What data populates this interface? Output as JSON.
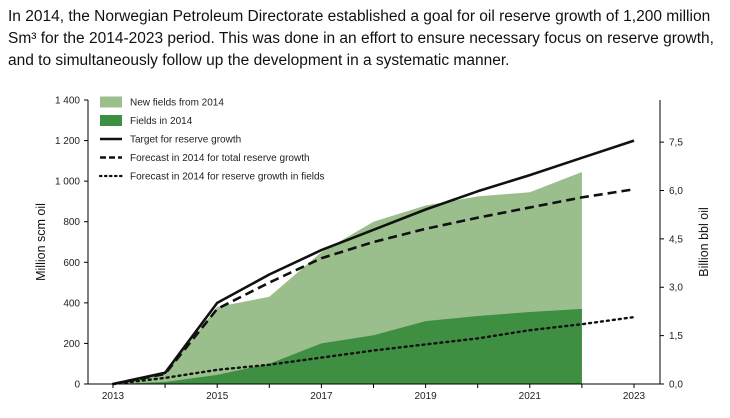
{
  "intro_text": "In 2014, the Norwegian Petroleum Directorate established a goal for oil reserve growth of 1,200 million Sm³ for the 2014-2023 period. This was done in an effort to ensure necessary focus on reserve growth, and to simultaneously follow up the development in a systematic manner.",
  "colors": {
    "new_fields": "#9bbf8c",
    "fields_2014": "#3f8f42",
    "lines": "#111111",
    "axis": "#000000"
  },
  "chart_data": {
    "type": "area",
    "xlabel": "",
    "ylabel": "Million scm oil",
    "ylabel_right": "Billion bbl oil",
    "xlim": [
      2013,
      2023
    ],
    "ylim": [
      0,
      1400
    ],
    "x_ticks": [
      "2013",
      "2015",
      "2017",
      "2019",
      "2021",
      "2023"
    ],
    "y_ticks": [
      "0",
      "200",
      "400",
      "600",
      "800",
      "1 000",
      "1 200",
      "1 400"
    ],
    "y_right_ticks": [
      "0,0",
      "1,5",
      "3,0",
      "4,5",
      "6,0",
      "7,5"
    ],
    "legend_position": "top-left",
    "series": [
      {
        "name": "New fields from 2014",
        "kind": "stacked-area",
        "x": [
          2013,
          2014,
          2015,
          2016,
          2017,
          2018,
          2019,
          2020,
          2021,
          2022
        ],
        "values": [
          0,
          50,
          380,
          430,
          650,
          800,
          880,
          925,
          945,
          1045
        ]
      },
      {
        "name": "Fields in 2014",
        "kind": "area",
        "x": [
          2013,
          2014,
          2015,
          2016,
          2017,
          2018,
          2019,
          2020,
          2021,
          2022
        ],
        "values": [
          0,
          10,
          45,
          100,
          200,
          240,
          310,
          335,
          355,
          370
        ]
      },
      {
        "name": "Target for reserve growth",
        "kind": "line-solid",
        "x": [
          2013,
          2014,
          2015,
          2016,
          2017,
          2018,
          2019,
          2020,
          2021,
          2022,
          2023
        ],
        "values": [
          0,
          55,
          400,
          540,
          660,
          760,
          860,
          950,
          1030,
          1115,
          1200
        ]
      },
      {
        "name": "Forecast in 2014 for total reserve growth",
        "kind": "line-dashed",
        "x": [
          2013,
          2014,
          2015,
          2016,
          2017,
          2018,
          2019,
          2020,
          2021,
          2022,
          2023
        ],
        "values": [
          0,
          50,
          370,
          500,
          620,
          700,
          765,
          820,
          870,
          920,
          960
        ]
      },
      {
        "name": "Forecast in 2014 for reserve growth in fields",
        "kind": "line-dotted",
        "x": [
          2013,
          2014,
          2015,
          2016,
          2017,
          2018,
          2019,
          2020,
          2021,
          2022,
          2023
        ],
        "values": [
          0,
          30,
          70,
          95,
          130,
          165,
          195,
          225,
          265,
          295,
          330
        ]
      }
    ]
  }
}
